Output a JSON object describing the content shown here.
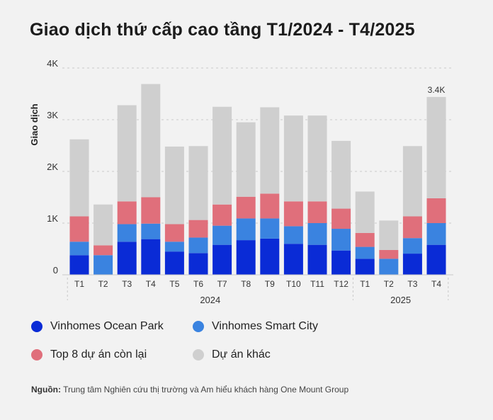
{
  "title": "Giao dịch thứ cấp cao tầng T1/2024 - T4/2025",
  "chart_data": {
    "type": "bar",
    "stacked": true,
    "ylabel": "Giao dịch",
    "ylim": [
      0,
      4000
    ],
    "yticks": [
      0,
      1000,
      2000,
      3000,
      4000
    ],
    "ytick_labels": [
      "0",
      "1K",
      "2K",
      "3K",
      "4K"
    ],
    "grid": "horizontal dashed",
    "categories": [
      "T1",
      "T2",
      "T3",
      "T4",
      "T5",
      "T6",
      "T7",
      "T8",
      "T9",
      "T10",
      "T11",
      "T12",
      "T1",
      "T2",
      "T3",
      "T4"
    ],
    "groups": [
      {
        "label": "2024",
        "start": 0,
        "end": 11
      },
      {
        "label": "2025",
        "start": 12,
        "end": 15
      }
    ],
    "series": [
      {
        "name": "Vinhomes Ocean Park",
        "color": "#0a2bd6",
        "values": [
          380,
          0,
          640,
          690,
          450,
          420,
          580,
          670,
          700,
          600,
          580,
          470,
          310,
          0,
          410,
          580
        ]
      },
      {
        "name": "Vinhomes Smart City",
        "color": "#3a83e0",
        "values": [
          260,
          380,
          340,
          300,
          190,
          300,
          370,
          420,
          390,
          340,
          420,
          420,
          230,
          310,
          300,
          420
        ]
      },
      {
        "name": "Top 8 dự án còn lại",
        "color": "#e06f7b",
        "values": [
          490,
          190,
          440,
          510,
          340,
          340,
          410,
          420,
          480,
          480,
          420,
          390,
          270,
          170,
          420,
          480
        ]
      },
      {
        "name": "Dự án khác",
        "color": "#cfcfcf",
        "values": [
          1490,
          790,
          1860,
          2190,
          1500,
          1430,
          1890,
          1440,
          1670,
          1660,
          1660,
          1310,
          800,
          570,
          1360,
          1960
        ]
      }
    ],
    "annotations": [
      {
        "index": 15,
        "text": "3.4K"
      }
    ]
  },
  "source": {
    "label": "Nguồn:",
    "text": "Trung tâm Nghiên cứu thị trường và Am hiểu khách hàng One Mount Group"
  }
}
